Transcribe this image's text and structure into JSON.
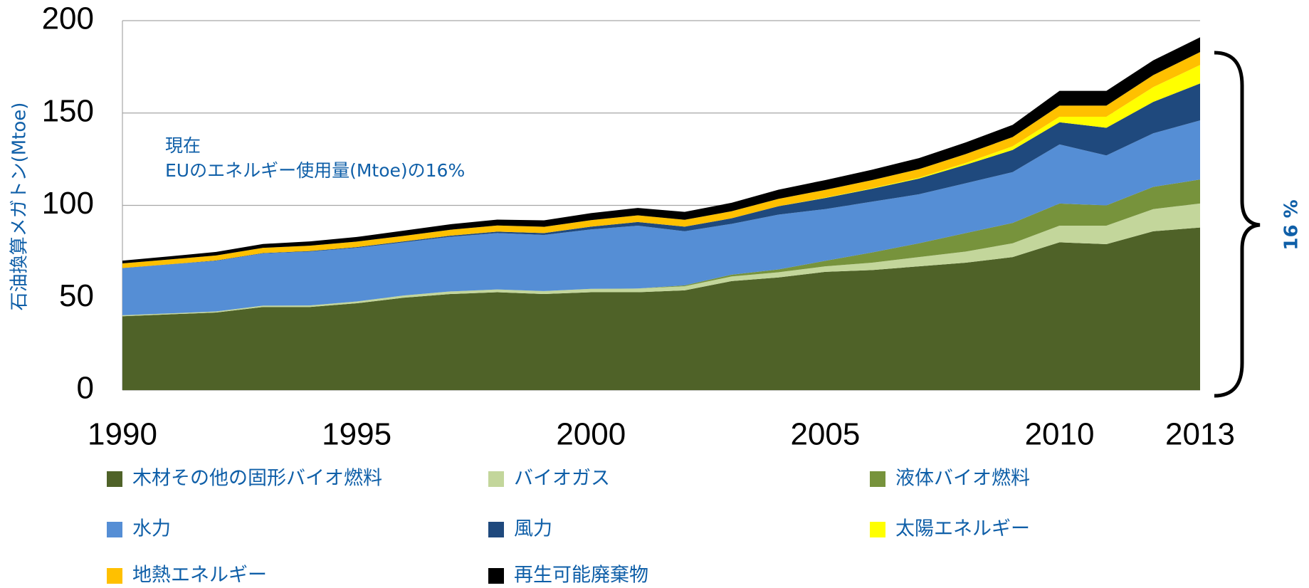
{
  "chart_data": {
    "type": "stacked_area",
    "ylabel": "石油換算メガトン(Mtoe)",
    "annotation": [
      "現在",
      "EUのエネルギー使用量(Mtoe)の16%"
    ],
    "bracket_label": "16 %",
    "x": [
      1990,
      1991,
      1992,
      1993,
      1994,
      1995,
      1996,
      1997,
      1998,
      1999,
      2000,
      2001,
      2002,
      2003,
      2004,
      2005,
      2006,
      2007,
      2008,
      2009,
      2010,
      2011,
      2012,
      2013
    ],
    "xlim": [
      1990,
      2013
    ],
    "xticks": [
      1990,
      1995,
      2000,
      2005,
      2010,
      2013
    ],
    "ylim": [
      0,
      200
    ],
    "yticks": [
      0,
      50,
      100,
      150,
      200
    ],
    "grid": true,
    "series": [
      {
        "name": "木材その他の固形バイオ燃料",
        "color": "#4f6228",
        "values": [
          40,
          41,
          42,
          45,
          45,
          47,
          50,
          52,
          53,
          52,
          53,
          53,
          54,
          59,
          61,
          64,
          65,
          67,
          69,
          72,
          80,
          79,
          86,
          88
        ]
      },
      {
        "name": "バイオガス",
        "color": "#c3d69b",
        "values": [
          0.5,
          0.5,
          0.6,
          0.7,
          0.8,
          1,
          1.2,
          1.4,
          1.5,
          1.6,
          1.8,
          2,
          2.2,
          2.5,
          2.8,
          3,
          4,
          5,
          6,
          7.5,
          9,
          10,
          12,
          13
        ]
      },
      {
        "name": "液体バイオ燃料",
        "color": "#77933c",
        "values": [
          0,
          0,
          0,
          0,
          0,
          0,
          0,
          0,
          0,
          0,
          0,
          0,
          0.5,
          1,
          1.5,
          3,
          5.5,
          7.5,
          10,
          11,
          12,
          11,
          12,
          13
        ]
      },
      {
        "name": "水力",
        "color": "#558ed5",
        "values": [
          25.5,
          26.5,
          27.4,
          28.3,
          29.2,
          29,
          28.8,
          29.6,
          30.5,
          30.4,
          32.2,
          34,
          29.3,
          27.5,
          29.7,
          28,
          27.5,
          26.5,
          27,
          27.5,
          32,
          27,
          29,
          32
        ]
      },
      {
        "name": "風力",
        "color": "#1f497d",
        "values": [
          0.1,
          0.1,
          0.2,
          0.2,
          0.3,
          0.4,
          0.5,
          0.6,
          0.8,
          1,
          1.5,
          2,
          2.5,
          3,
          4.5,
          6,
          7,
          8.5,
          10,
          12,
          12,
          15,
          17,
          20
        ]
      },
      {
        "name": "太陽エネルギー",
        "color": "#ffff00",
        "values": [
          0,
          0,
          0,
          0,
          0,
          0,
          0,
          0,
          0,
          0,
          0,
          0,
          0,
          0,
          0,
          0.2,
          0.3,
          0.5,
          1,
          2,
          3,
          6,
          8,
          10
        ]
      },
      {
        "name": "地熱エネルギー",
        "color": "#ffc000",
        "values": [
          2.5,
          2.6,
          2.7,
          2.8,
          2.9,
          3,
          3,
          3.2,
          3.3,
          3.4,
          3.5,
          3.6,
          3.7,
          3.8,
          4,
          4.2,
          4.4,
          4.6,
          4.8,
          5,
          6,
          6,
          6.5,
          7
        ]
      },
      {
        "name": "再生可能廃棄物",
        "color": "#000000",
        "values": [
          1.5,
          1.7,
          1.9,
          2.1,
          2.3,
          2.5,
          2.8,
          3,
          3.2,
          3.5,
          3.8,
          4,
          4.3,
          4.6,
          5,
          5.3,
          5.6,
          6,
          6.3,
          6.6,
          8,
          8,
          8,
          8
        ]
      }
    ]
  }
}
